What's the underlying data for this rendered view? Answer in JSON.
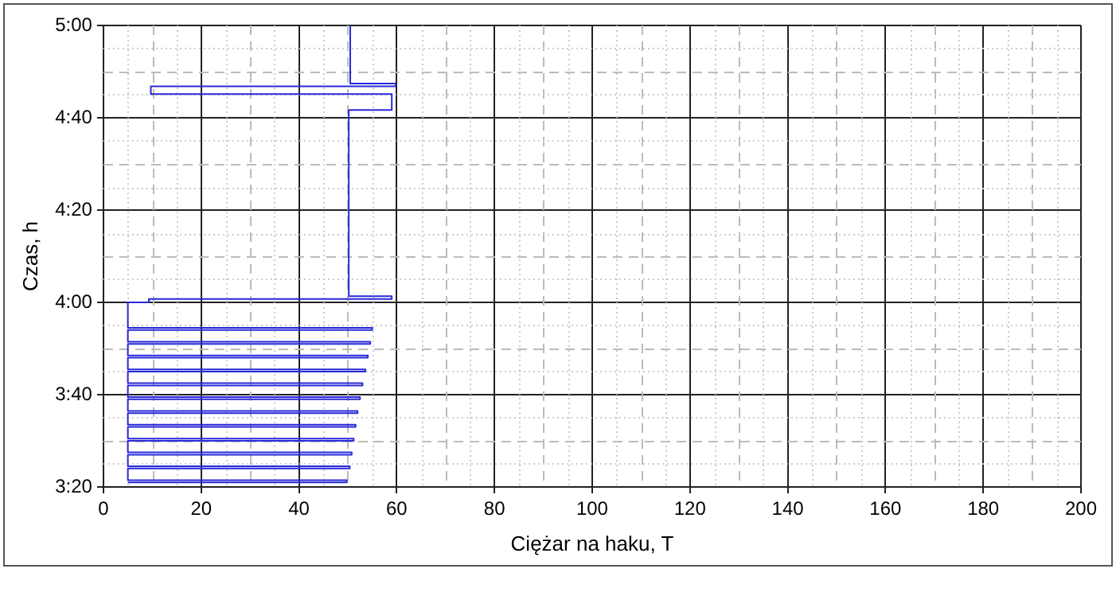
{
  "chart_data": {
    "type": "line",
    "xlabel": "Ciężar na haku, T",
    "ylabel": "Czas, h",
    "xlim": [
      0,
      200
    ],
    "xticks": [
      0,
      20,
      40,
      60,
      80,
      100,
      120,
      140,
      160,
      180,
      200
    ],
    "ylim": [
      3.333333,
      5
    ],
    "yticks": [
      {
        "value": 3.333333,
        "label": "3:20"
      },
      {
        "value": 3.666667,
        "label": "3:40"
      },
      {
        "value": 4,
        "label": "4:00"
      },
      {
        "value": 4.333333,
        "label": "4:20"
      },
      {
        "value": 4.666667,
        "label": "4:40"
      },
      {
        "value": 5,
        "label": "5:00"
      }
    ],
    "grid": true,
    "legend": false,
    "marker": "none",
    "line_style": "solid",
    "series": [
      {
        "color": "#2828d8",
        "x": [
          5,
          49.8,
          49.8,
          5,
          5,
          50.4,
          50.4,
          5,
          5,
          50.8,
          50.8,
          5,
          5,
          51.2,
          51.2,
          5,
          5,
          51.6,
          51.6,
          5,
          5,
          52.0,
          52.0,
          5,
          5,
          52.5,
          52.5,
          5,
          5,
          53.0,
          53.0,
          5,
          5,
          53.6,
          53.6,
          5,
          5,
          54.1,
          54.1,
          5,
          5,
          54.6,
          54.6,
          5,
          5,
          55.0,
          55.0,
          5,
          5,
          9.3,
          9.3,
          59,
          59,
          50.2,
          50.2,
          59,
          59,
          9.7,
          9.7,
          59.8,
          59.8,
          50.5,
          50.5
        ],
        "values": [
          3.35,
          3.35,
          3.358,
          3.358,
          3.4,
          3.4,
          3.408,
          3.408,
          3.45,
          3.45,
          3.458,
          3.458,
          3.5,
          3.5,
          3.508,
          3.508,
          3.55,
          3.55,
          3.558,
          3.558,
          3.6,
          3.6,
          3.608,
          3.608,
          3.65,
          3.65,
          3.658,
          3.658,
          3.7,
          3.7,
          3.708,
          3.708,
          3.75,
          3.75,
          3.758,
          3.758,
          3.8,
          3.8,
          3.808,
          3.808,
          3.85,
          3.85,
          3.858,
          3.858,
          3.9,
          3.9,
          3.908,
          3.908,
          4.0,
          4.0,
          4.012,
          4.012,
          4.022,
          4.022,
          4.695,
          4.695,
          4.752,
          4.752,
          4.78,
          4.78,
          4.79,
          4.79,
          5.0
        ]
      }
    ]
  }
}
